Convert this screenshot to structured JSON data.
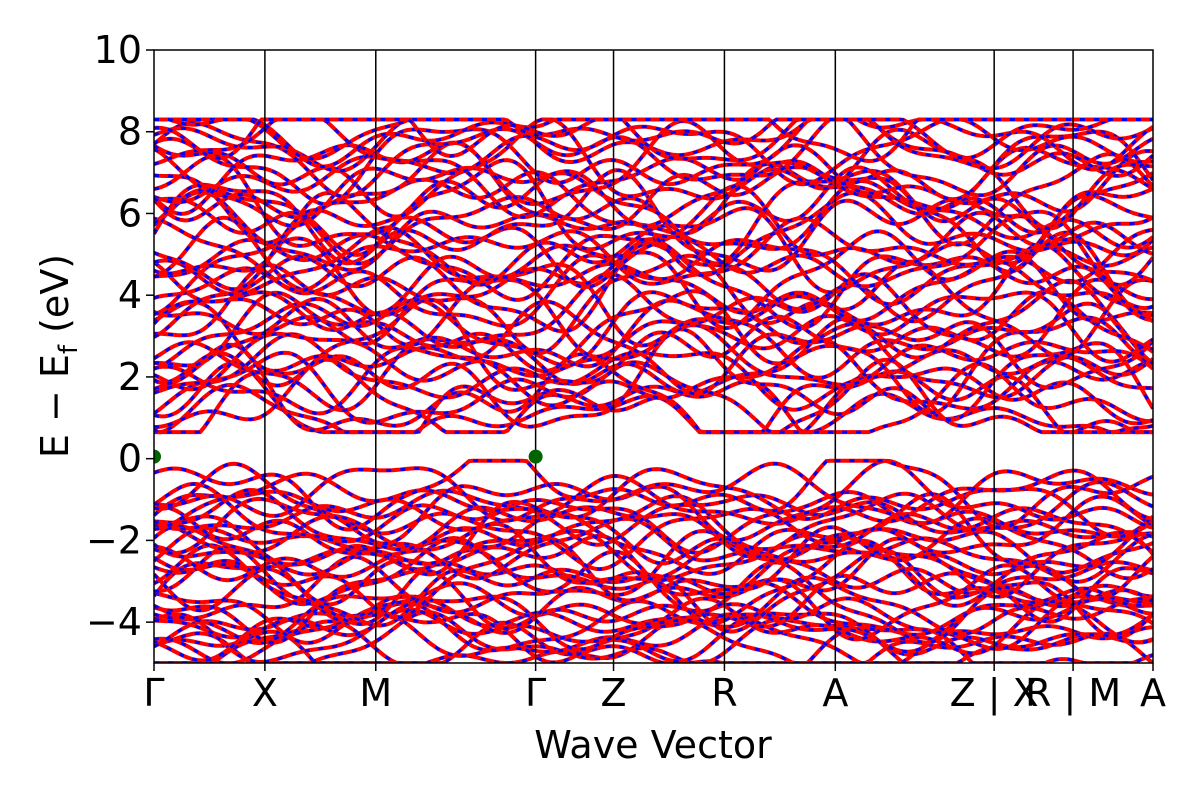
{
  "chart_data": {
    "type": "line",
    "xlabel": "Wave Vector",
    "ylabel": "E − E_f (eV)",
    "ylabel_parts": {
      "main": "E − E",
      "sub": "f",
      "unit": " (eV)"
    },
    "ylim": [
      -5,
      10
    ],
    "yticks": [
      -4,
      -2,
      0,
      2,
      4,
      6,
      8,
      10
    ],
    "ytick_labels": [
      "−4",
      "−2",
      "0",
      "2",
      "4",
      "6",
      "8",
      "10"
    ],
    "grid": false,
    "path_breaks": [
      {
        "x": 0.0,
        "label": "Γ"
      },
      {
        "x": 0.111,
        "label": "X"
      },
      {
        "x": 0.222,
        "label": "M"
      },
      {
        "x": 0.382,
        "label": "Γ"
      },
      {
        "x": 0.46,
        "label": "Z"
      },
      {
        "x": 0.571,
        "label": "R"
      },
      {
        "x": 0.682,
        "label": "A"
      },
      {
        "x": 0.841,
        "label": "Z | X"
      },
      {
        "x": 0.92,
        "label": "R | M"
      },
      {
        "x": 1.0,
        "label": "A"
      }
    ],
    "xlim": [
      0,
      1
    ],
    "series": [
      {
        "style": "solid",
        "color": "#ff0000"
      },
      {
        "style": "dashed",
        "color": "#0000ff"
      }
    ],
    "markers": [
      {
        "x": 0.0,
        "y": 0.05,
        "color": "#006400"
      },
      {
        "x": 0.382,
        "y": 0.05,
        "color": "#006400"
      }
    ],
    "band_groups": {
      "conduction": {
        "min": 0.35,
        "max": 8.3
      },
      "valence": {
        "min": -5.0,
        "max": 0.0
      }
    }
  }
}
